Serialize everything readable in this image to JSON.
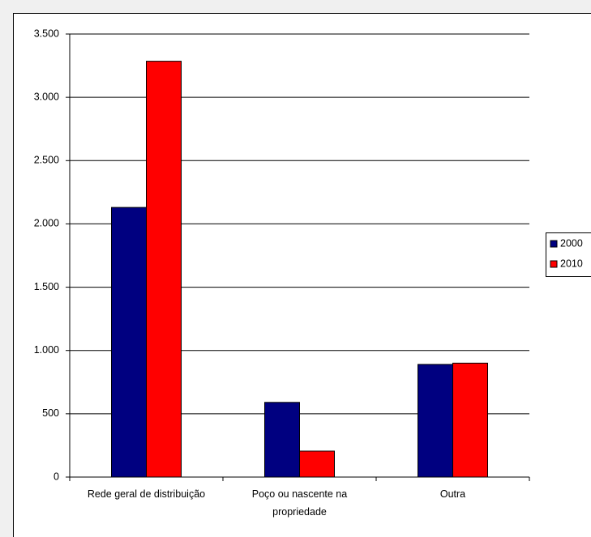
{
  "chart_data": {
    "type": "bar",
    "categories": [
      "Rede geral de distribuição",
      "Poço ou nascente na propriedade",
      "Outra"
    ],
    "series": [
      {
        "name": "2000",
        "color": "#000080",
        "values": [
          2130,
          590,
          890
        ]
      },
      {
        "name": "2010",
        "color": "#ff0000",
        "values": [
          3285,
          205,
          900
        ]
      }
    ],
    "ylim": [
      0,
      3500
    ],
    "yticks": [
      0,
      500,
      {
        "value": 1000,
        "label": "1.000"
      },
      {
        "value": 1500,
        "label": "1.500"
      },
      {
        "value": 2000,
        "label": "2.000"
      },
      {
        "value": 2500,
        "label": "2.500"
      },
      {
        "value": 3000,
        "label": "3.000"
      },
      {
        "value": 3500,
        "label": "3.500"
      }
    ],
    "grid": true,
    "legend": "right"
  }
}
